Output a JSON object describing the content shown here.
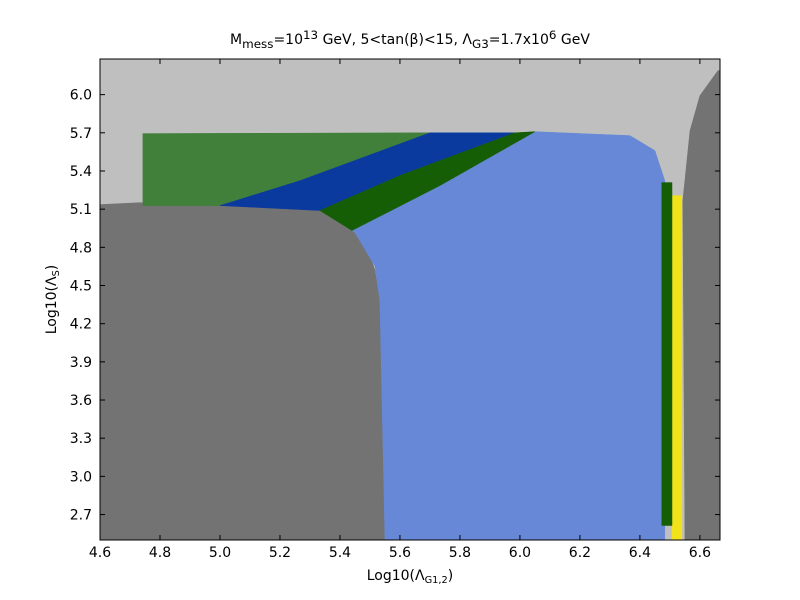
{
  "chart_data": {
    "type": "region",
    "title": [
      {
        "text": "M"
      },
      {
        "sub": "mess"
      },
      {
        "text": "=10"
      },
      {
        "sup": "13"
      },
      {
        "text": "  GeV, 5<tan(β)<15, Λ"
      },
      {
        "sub": "G3"
      },
      {
        "text": "=1.7x10"
      },
      {
        "sup": "6"
      },
      {
        "text": "  GeV"
      }
    ],
    "xlabel": [
      {
        "text": "Log10(Λ"
      },
      {
        "sub": "G1,2"
      },
      {
        "text": ")"
      }
    ],
    "ylabel": [
      {
        "text": "Log10(Λ"
      },
      {
        "sub": "S"
      },
      {
        "text": ")"
      }
    ],
    "xlim": [
      4.6,
      6.667
    ],
    "ylim": [
      2.5,
      6.28
    ],
    "xticks": [
      4.6,
      4.8,
      {
        "value": 5.0,
        "label": "5.0"
      },
      5.2,
      5.4,
      5.6,
      5.8,
      {
        "value": 6.0,
        "label": "6.0"
      },
      6.2,
      6.4,
      6.6
    ],
    "yticks": [
      2.7,
      {
        "value": 3.0,
        "label": "3.0"
      },
      3.3,
      3.6,
      3.9,
      4.2,
      4.5,
      4.8,
      5.1,
      5.4,
      5.7,
      {
        "value": 6.0,
        "label": "6.0"
      }
    ],
    "series": [
      {
        "color": "#bfbfbf",
        "x": [
          4.6,
          6.667,
          6.667,
          4.6
        ],
        "y": [
          2.5,
          2.5,
          6.28,
          6.28
        ]
      },
      {
        "color": "#737373",
        "x": [
          4.6,
          4.6,
          4.733,
          5.267,
          5.4,
          5.483,
          5.517,
          5.533,
          5.55
        ],
        "y": [
          2.5,
          5.136,
          5.151,
          5.12,
          5.05,
          4.853,
          4.617,
          4.381,
          2.5
        ]
      },
      {
        "color": "#6788d6",
        "x": [
          5.55,
          5.533,
          5.517,
          5.45,
          5.44,
          5.733,
          6.05,
          6.367,
          6.45,
          6.483,
          6.483
        ],
        "y": [
          2.5,
          4.381,
          4.65,
          4.916,
          4.932,
          5.285,
          5.709,
          5.678,
          5.56,
          5.324,
          2.5
        ]
      },
      {
        "color": "#41803a",
        "x": [
          4.743,
          4.743,
          5.7,
          5.267,
          5.0
        ],
        "y": [
          5.128,
          5.694,
          5.7,
          5.324,
          5.128
        ]
      },
      {
        "color": "#0b3a9e",
        "x": [
          5.7,
          5.983,
          5.6,
          5.333,
          5.0,
          5.267
        ],
        "y": [
          5.7,
          5.7,
          5.364,
          5.089,
          5.128,
          5.324
        ]
      },
      {
        "color": "#155e05",
        "x": [
          5.983,
          6.05,
          5.733,
          5.44,
          5.333,
          5.6
        ],
        "y": [
          5.7,
          5.709,
          5.285,
          4.932,
          5.089,
          5.364
        ]
      },
      {
        "color": "#f2e21c",
        "x": [
          6.507,
          6.54,
          6.54,
          6.507
        ],
        "y": [
          2.5,
          2.5,
          5.206,
          5.206
        ]
      },
      {
        "color": "#155e05",
        "x": [
          6.473,
          6.507,
          6.507,
          6.473
        ],
        "y": [
          2.614,
          2.614,
          5.309,
          5.309
        ]
      },
      {
        "color": "#737373",
        "x": [
          6.55,
          6.543,
          6.567,
          6.6,
          6.66,
          6.667,
          6.667
        ],
        "y": [
          2.5,
          5.167,
          5.717,
          5.992,
          6.189,
          6.189,
          2.5
        ]
      }
    ]
  }
}
